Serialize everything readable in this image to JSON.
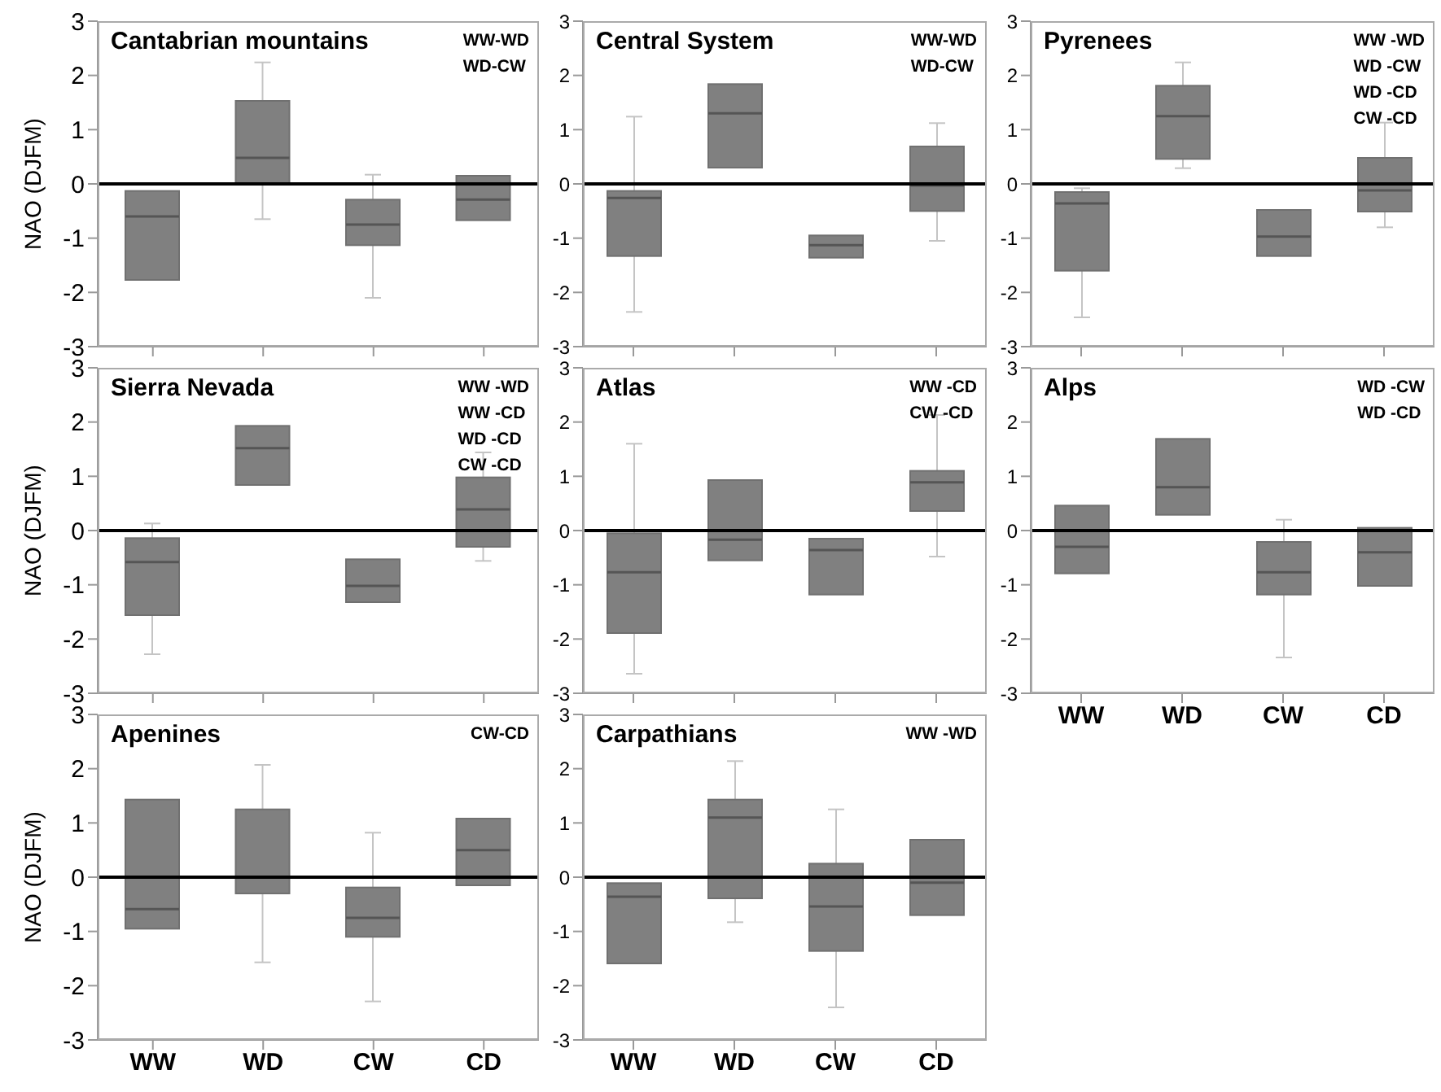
{
  "chart_data": [
    {
      "type": "box",
      "title": "Cantabrian mountains",
      "ylabel": "NAO (DJFM)",
      "categories": [
        null,
        null,
        null,
        null
      ],
      "ylim": [
        -3,
        3
      ],
      "yticks": [
        -3,
        -2,
        -1,
        0,
        1,
        2,
        3
      ],
      "tick_labels": "y",
      "ref_lines": [
        {
          "axis": "y",
          "value": 0
        }
      ],
      "annotations": [
        "WW-WD",
        "WD-CW"
      ],
      "series": [
        {
          "color": "#808080",
          "boxes": [
            {
              "low": -1.77,
              "q1": -1.77,
              "median": -0.6,
              "q3": -0.13,
              "high": -0.13
            },
            {
              "low": -0.65,
              "q1": 0,
              "median": 0.48,
              "q3": 1.53,
              "high": 2.24
            },
            {
              "low": -2.1,
              "q1": -1.13,
              "median": -0.75,
              "q3": -0.29,
              "high": 0.17
            },
            {
              "low": -0.67,
              "q1": -0.67,
              "median": -0.29,
              "q3": 0.15,
              "high": 0.15
            }
          ]
        }
      ]
    },
    {
      "type": "box",
      "title": "Central System",
      "categories": [
        null,
        null,
        null,
        null
      ],
      "ylim": [
        -3,
        3
      ],
      "yticks": [
        -3,
        -2,
        -1,
        0,
        1,
        2,
        3
      ],
      "tick_labels": "y",
      "ref_lines": [
        {
          "axis": "y",
          "value": 0
        }
      ],
      "annotations": [
        "WW-WD",
        "WD-CW"
      ],
      "series": [
        {
          "color": "#808080",
          "boxes": [
            {
              "low": -2.36,
              "q1": -1.33,
              "median": -0.26,
              "q3": -0.13,
              "high": 1.24
            },
            {
              "low": 0.3,
              "q1": 0.3,
              "median": 1.3,
              "q3": 1.84,
              "high": 1.84
            },
            {
              "low": -1.36,
              "q1": -1.36,
              "median": -1.13,
              "q3": -0.95,
              "high": -0.95
            },
            {
              "low": -1.05,
              "q1": -0.5,
              "median": -0.03,
              "q3": 0.69,
              "high": 1.12
            }
          ]
        }
      ]
    },
    {
      "type": "box",
      "title": "Pyrenees",
      "categories": [
        null,
        null,
        null,
        null
      ],
      "ylim": [
        -3,
        3
      ],
      "yticks": [
        -3,
        -2,
        -1,
        0,
        1,
        2,
        3
      ],
      "tick_labels": "y",
      "ref_lines": [
        {
          "axis": "y",
          "value": 0
        }
      ],
      "annotations": [
        "WW -WD",
        "WD -CW",
        "WD -CD",
        "CW -CD"
      ],
      "series": [
        {
          "color": "#808080",
          "boxes": [
            {
              "low": -2.46,
              "q1": -1.6,
              "median": -0.36,
              "q3": -0.15,
              "high": -0.08
            },
            {
              "low": 0.29,
              "q1": 0.46,
              "median": 1.25,
              "q3": 1.81,
              "high": 2.24
            },
            {
              "low": -1.33,
              "q1": -1.33,
              "median": -0.97,
              "q3": -0.48,
              "high": -0.48
            },
            {
              "low": -0.8,
              "q1": -0.51,
              "median": -0.12,
              "q3": 0.48,
              "high": 1.13
            }
          ]
        }
      ]
    },
    {
      "type": "box",
      "title": "Sierra Nevada",
      "ylabel": "NAO (DJFM)",
      "categories": [
        null,
        null,
        null,
        null
      ],
      "ylim": [
        -3,
        3
      ],
      "yticks": [
        -3,
        -2,
        -1,
        0,
        1,
        2,
        3
      ],
      "tick_labels": "y",
      "ref_lines": [
        {
          "axis": "y",
          "value": 0
        }
      ],
      "annotations": [
        "WW -WD",
        "WW -CD",
        "WD -CD",
        "CW -CD"
      ],
      "series": [
        {
          "color": "#808080",
          "boxes": [
            {
              "low": -2.28,
              "q1": -1.56,
              "median": -0.58,
              "q3": -0.14,
              "high": 0.13
            },
            {
              "low": 0.84,
              "q1": 0.84,
              "median": 1.52,
              "q3": 1.93,
              "high": 1.93
            },
            {
              "low": -1.32,
              "q1": -1.32,
              "median": -1.02,
              "q3": -0.53,
              "high": -0.53
            },
            {
              "low": -0.56,
              "q1": -0.3,
              "median": 0.39,
              "q3": 0.98,
              "high": 1.44
            }
          ]
        }
      ]
    },
    {
      "type": "box",
      "title": "Atlas",
      "categories": [
        null,
        null,
        null,
        null
      ],
      "ylim": [
        -3,
        3
      ],
      "yticks": [
        -3,
        -2,
        -1,
        0,
        1,
        2,
        3
      ],
      "tick_labels": "y",
      "ref_lines": [
        {
          "axis": "y",
          "value": 0
        }
      ],
      "annotations": [
        "WW -CD",
        "CW -CD"
      ],
      "series": [
        {
          "color": "#808080",
          "boxes": [
            {
              "low": -2.64,
              "q1": -1.89,
              "median": -0.77,
              "q3": -0.05,
              "high": 1.6
            },
            {
              "low": -0.55,
              "q1": -0.55,
              "median": -0.17,
              "q3": 0.93,
              "high": 0.93
            },
            {
              "low": -1.18,
              "q1": -1.18,
              "median": -0.36,
              "q3": -0.15,
              "high": -0.15
            },
            {
              "low": -0.48,
              "q1": 0.36,
              "median": 0.89,
              "q3": 1.1,
              "high": 2.13
            }
          ]
        }
      ]
    },
    {
      "type": "box",
      "title": "Alps",
      "categories": [
        "WW",
        "WD",
        "CW",
        "CD"
      ],
      "ylim": [
        -3,
        3
      ],
      "yticks": [
        -3,
        -2,
        -1,
        0,
        1,
        2,
        3
      ],
      "ref_lines": [
        {
          "axis": "y",
          "value": 0
        }
      ],
      "annotations": [
        "WD -CW",
        "WD -CD"
      ],
      "series": [
        {
          "color": "#808080",
          "boxes": [
            {
              "low": -0.79,
              "q1": -0.79,
              "median": -0.3,
              "q3": 0.46,
              "high": 0.46
            },
            {
              "low": 0.29,
              "q1": 0.29,
              "median": 0.8,
              "q3": 1.69,
              "high": 1.69
            },
            {
              "low": -2.34,
              "q1": -1.18,
              "median": -0.77,
              "q3": -0.21,
              "high": 0.2
            },
            {
              "low": -1.02,
              "q1": -1.02,
              "median": -0.4,
              "q3": 0.05,
              "high": 0.05
            }
          ]
        }
      ]
    },
    {
      "type": "box",
      "title": "Apenines",
      "ylabel": "NAO (DJFM)",
      "categories": [
        "WW",
        "WD",
        "CW",
        "CD"
      ],
      "ylim": [
        -3,
        3
      ],
      "yticks": [
        -3,
        -2,
        -1,
        0,
        1,
        2,
        3
      ],
      "ref_lines": [
        {
          "axis": "y",
          "value": 0
        }
      ],
      "annotations": [
        "CW-CD"
      ],
      "series": [
        {
          "color": "#808080",
          "boxes": [
            {
              "low": -0.95,
              "q1": -0.95,
              "median": -0.59,
              "q3": 1.43,
              "high": 1.43
            },
            {
              "low": -1.57,
              "q1": -0.3,
              "median": 0,
              "q3": 1.25,
              "high": 2.07
            },
            {
              "low": -2.29,
              "q1": -1.1,
              "median": -0.75,
              "q3": -0.19,
              "high": 0.82
            },
            {
              "low": -0.15,
              "q1": -0.15,
              "median": 0.5,
              "q3": 1.08,
              "high": 1.08
            }
          ]
        }
      ]
    },
    {
      "type": "box",
      "title": "Carpathians",
      "categories": [
        "WW",
        "WD",
        "CW",
        "CD"
      ],
      "ylim": [
        -3,
        3
      ],
      "yticks": [
        -3,
        -2,
        -1,
        0,
        1,
        2,
        3
      ],
      "ref_lines": [
        {
          "axis": "y",
          "value": 0
        }
      ],
      "annotations": [
        "WW -WD"
      ],
      "series": [
        {
          "color": "#808080",
          "boxes": [
            {
              "low": -1.59,
              "q1": -1.59,
              "median": -0.36,
              "q3": -0.11,
              "high": -0.11
            },
            {
              "low": -0.83,
              "q1": -0.39,
              "median": 1.1,
              "q3": 1.43,
              "high": 2.14
            },
            {
              "low": -2.4,
              "q1": -1.36,
              "median": -0.54,
              "q3": 0.25,
              "high": 1.25
            },
            {
              "low": -0.7,
              "q1": -0.7,
              "median": -0.1,
              "q3": 0.69,
              "high": 0.69
            }
          ]
        }
      ]
    }
  ]
}
